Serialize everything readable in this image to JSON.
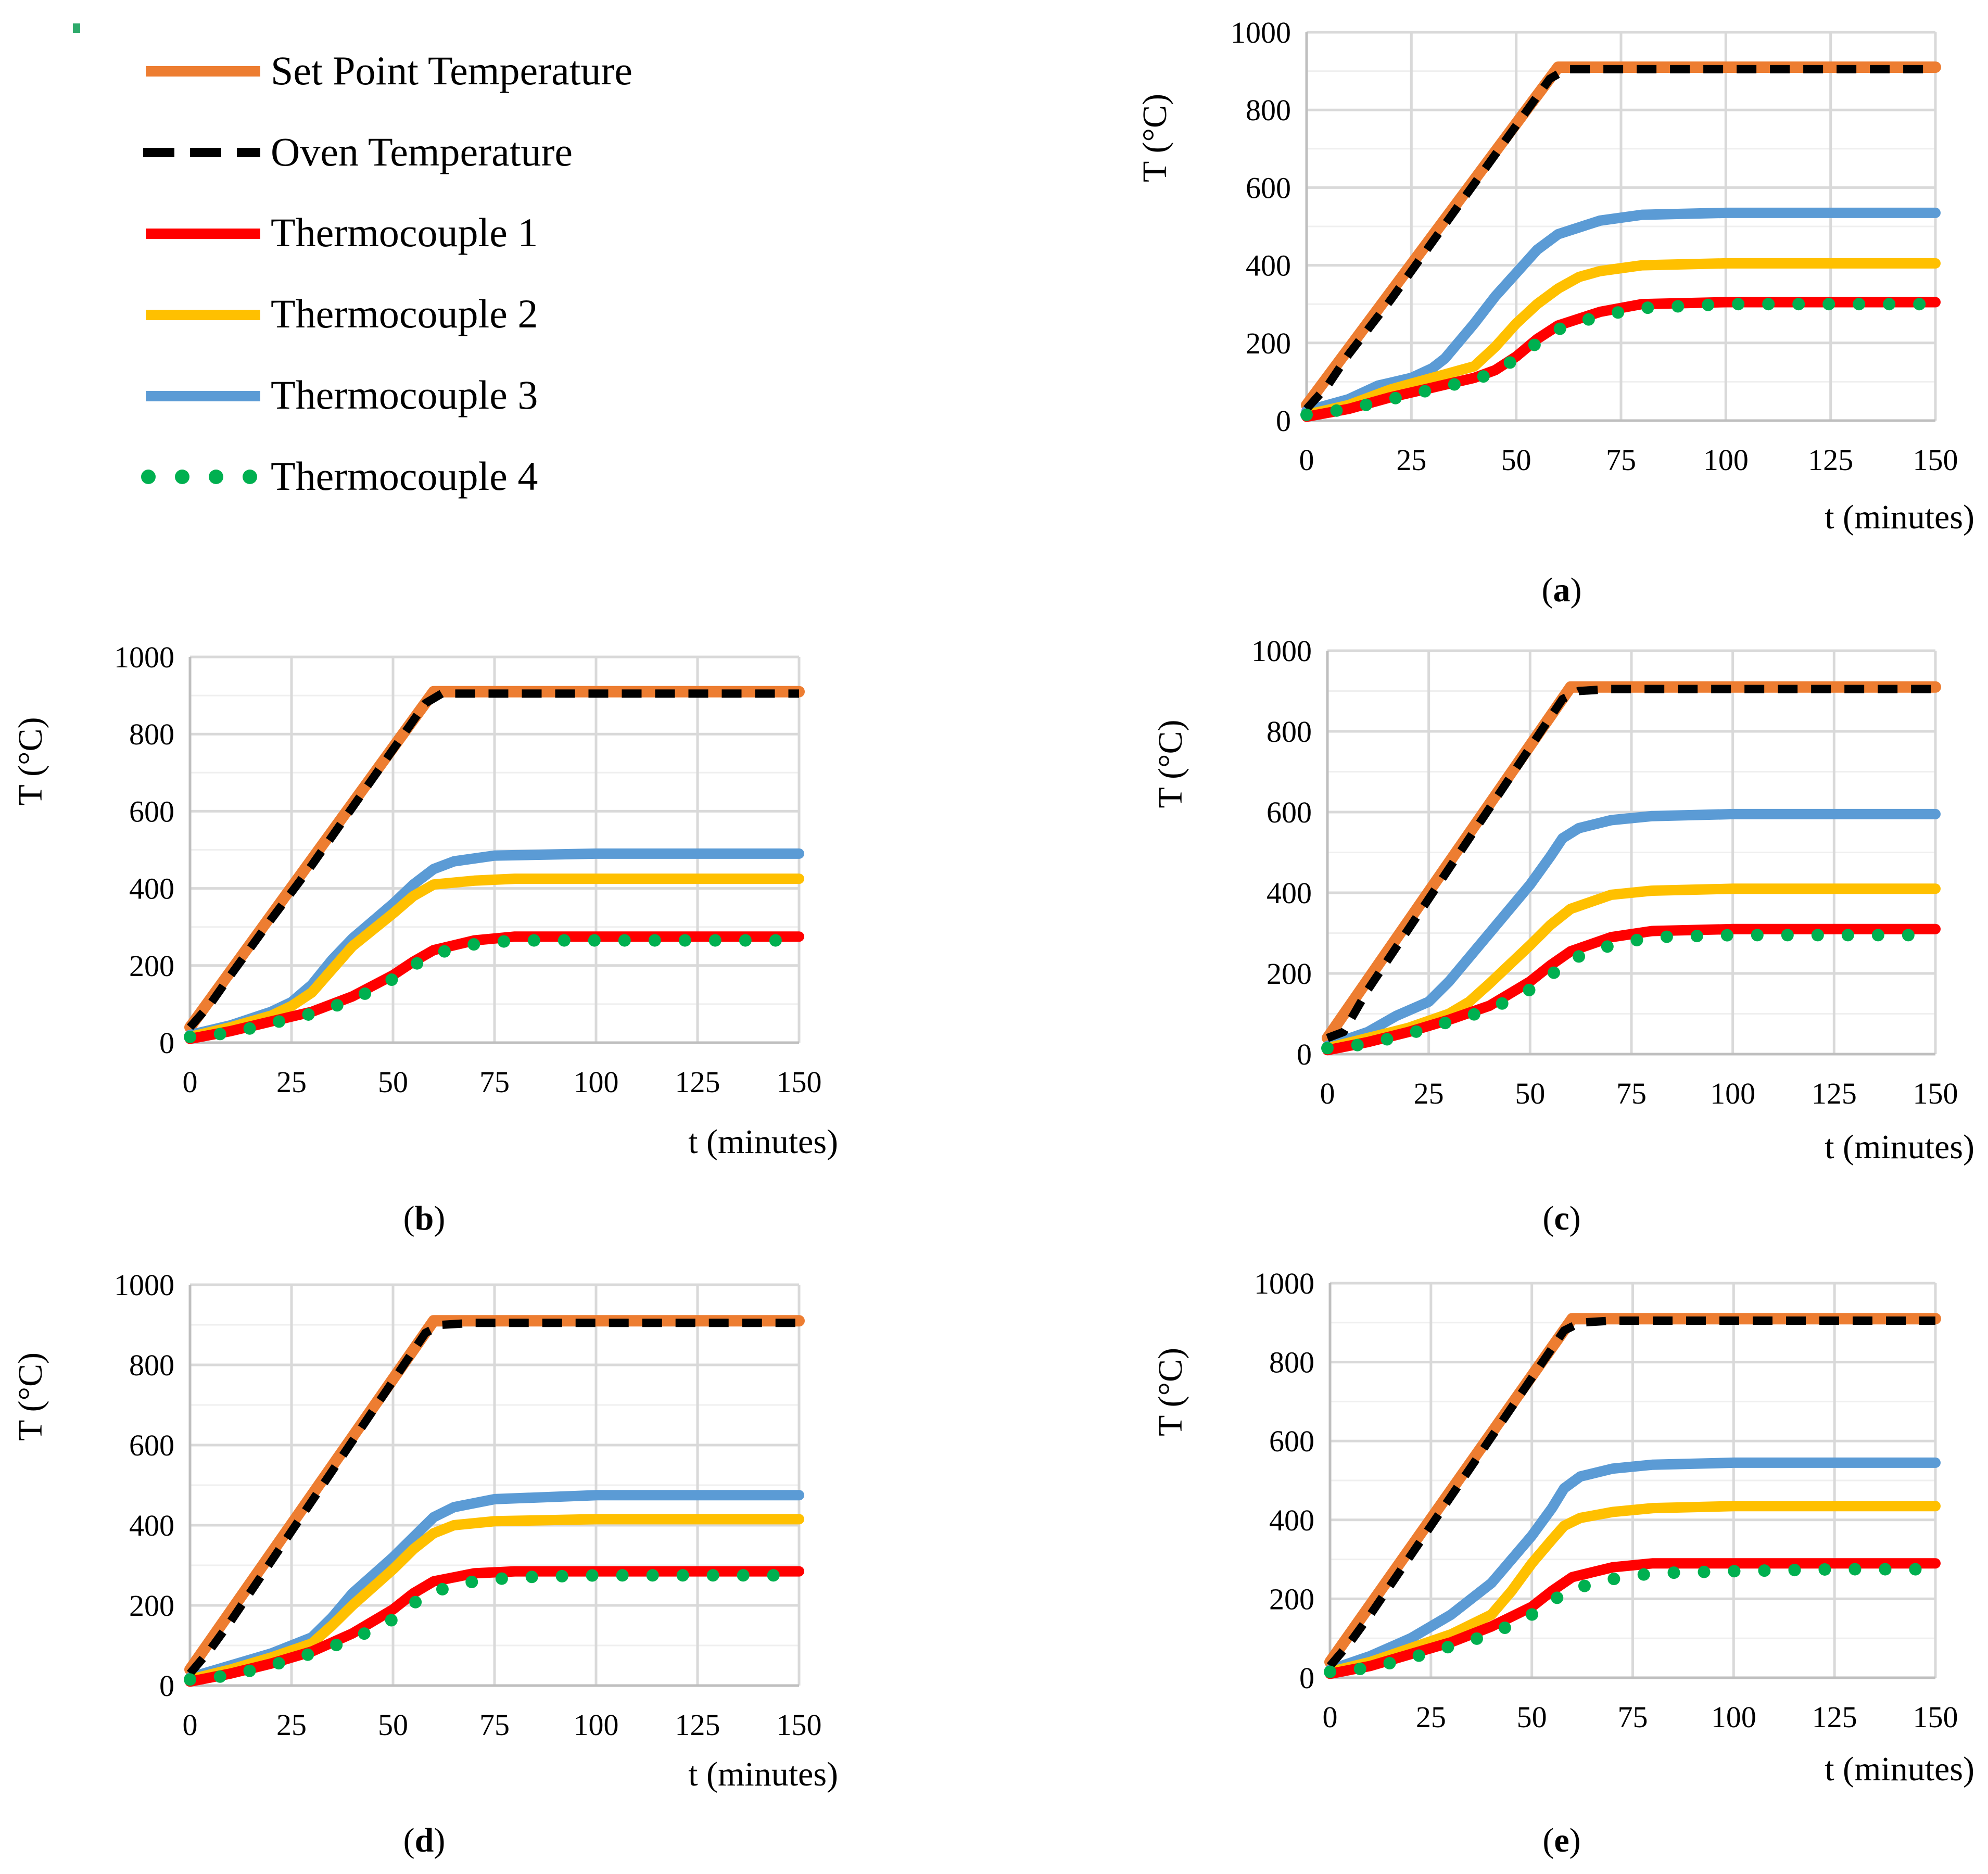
{
  "legend": {
    "items": [
      {
        "label": "Set Point Temperature",
        "color": "#ED7D31",
        "style": "solid"
      },
      {
        "label": "Oven Temperature",
        "color": "#000000",
        "style": "dashed"
      },
      {
        "label": "Thermocouple 1",
        "color": "#FF0000",
        "style": "solid"
      },
      {
        "label": "Thermocouple 2",
        "color": "#FFC000",
        "style": "solid"
      },
      {
        "label": "Thermocouple 3",
        "color": "#5B9BD5",
        "style": "solid"
      },
      {
        "label": "Thermocouple 4",
        "color": "#00B050",
        "style": "dotted"
      }
    ]
  },
  "chart_data": [
    {
      "type": "line",
      "panel": "a",
      "xlabel": "t (minutes)",
      "ylabel": "T (°C)",
      "xlim": [
        0,
        150
      ],
      "ylim": [
        0,
        1000
      ],
      "xticks": [
        0,
        25,
        50,
        75,
        100,
        125,
        150
      ],
      "yticks": [
        0,
        200,
        400,
        600,
        800,
        1000
      ],
      "grid": true,
      "series": [
        {
          "name": "Set Point Temperature",
          "x": [
            0,
            60,
            150
          ],
          "y": [
            40,
            910,
            910
          ]
        },
        {
          "name": "Oven Temperature",
          "x": [
            0,
            5,
            10,
            20,
            30,
            40,
            50,
            58,
            62,
            70,
            100,
            150
          ],
          "y": [
            30,
            90,
            170,
            310,
            460,
            610,
            760,
            880,
            905,
            905,
            905,
            905
          ]
        },
        {
          "name": "Thermocouple 1",
          "x": [
            0,
            10,
            20,
            30,
            40,
            45,
            50,
            55,
            60,
            70,
            80,
            100,
            125,
            150
          ],
          "y": [
            10,
            30,
            60,
            85,
            110,
            130,
            165,
            210,
            245,
            280,
            300,
            305,
            305,
            305
          ]
        },
        {
          "name": "Thermocouple 2",
          "x": [
            0,
            10,
            20,
            30,
            40,
            45,
            50,
            55,
            60,
            65,
            70,
            80,
            100,
            125,
            150
          ],
          "y": [
            15,
            40,
            80,
            110,
            140,
            190,
            250,
            300,
            340,
            370,
            385,
            400,
            405,
            405,
            405
          ]
        },
        {
          "name": "Thermocouple 3",
          "x": [
            0,
            10,
            17,
            25,
            30,
            33,
            40,
            45,
            50,
            55,
            60,
            70,
            80,
            100,
            125,
            150
          ],
          "y": [
            25,
            55,
            90,
            110,
            135,
            160,
            250,
            320,
            380,
            440,
            480,
            515,
            530,
            535,
            535,
            535
          ]
        },
        {
          "name": "Thermocouple 4",
          "x": [
            0,
            10,
            20,
            30,
            40,
            45,
            50,
            55,
            60,
            70,
            80,
            100,
            125,
            150
          ],
          "y": [
            15,
            30,
            55,
            80,
            105,
            125,
            160,
            200,
            235,
            270,
            290,
            300,
            300,
            300
          ]
        }
      ]
    },
    {
      "type": "line",
      "panel": "b",
      "xlabel": "t (minutes)",
      "ylabel": "T (°C)",
      "xlim": [
        0,
        150
      ],
      "ylim": [
        0,
        1000
      ],
      "xticks": [
        0,
        25,
        50,
        75,
        100,
        125,
        150
      ],
      "yticks": [
        0,
        200,
        400,
        600,
        800,
        1000
      ],
      "grid": true,
      "series": [
        {
          "name": "Set Point Temperature",
          "x": [
            0,
            60,
            150
          ],
          "y": [
            40,
            910,
            910
          ]
        },
        {
          "name": "Oven Temperature",
          "x": [
            0,
            5,
            10,
            20,
            30,
            40,
            50,
            58,
            62,
            70,
            100,
            150
          ],
          "y": [
            40,
            100,
            175,
            320,
            460,
            610,
            760,
            880,
            905,
            905,
            905,
            905
          ]
        },
        {
          "name": "Thermocouple 1",
          "x": [
            0,
            10,
            20,
            30,
            40,
            50,
            55,
            60,
            70,
            80,
            100,
            125,
            150
          ],
          "y": [
            10,
            30,
            55,
            80,
            120,
            175,
            210,
            240,
            265,
            275,
            275,
            275,
            275
          ]
        },
        {
          "name": "Thermocouple 2",
          "x": [
            0,
            10,
            20,
            25,
            30,
            35,
            40,
            50,
            55,
            60,
            70,
            80,
            100,
            125,
            150
          ],
          "y": [
            15,
            40,
            70,
            95,
            130,
            190,
            250,
            335,
            380,
            410,
            420,
            425,
            425,
            425,
            425
          ]
        },
        {
          "name": "Thermocouple 3",
          "x": [
            0,
            10,
            20,
            25,
            30,
            35,
            40,
            50,
            55,
            60,
            65,
            75,
            100,
            125,
            150
          ],
          "y": [
            20,
            45,
            80,
            105,
            150,
            215,
            270,
            360,
            410,
            450,
            470,
            485,
            490,
            490,
            490
          ]
        },
        {
          "name": "Thermocouple 4",
          "x": [
            0,
            10,
            20,
            30,
            40,
            50,
            55,
            60,
            70,
            80,
            100,
            125,
            150
          ],
          "y": [
            15,
            25,
            50,
            75,
            110,
            165,
            200,
            230,
            255,
            265,
            265,
            265,
            265
          ]
        }
      ]
    },
    {
      "type": "line",
      "panel": "c",
      "xlabel": "t (minutes)",
      "ylabel": "T (°C)",
      "xlim": [
        0,
        150
      ],
      "ylim": [
        0,
        1000
      ],
      "xticks": [
        0,
        25,
        50,
        75,
        100,
        125,
        150
      ],
      "yticks": [
        0,
        200,
        400,
        600,
        800,
        1000
      ],
      "grid": true,
      "series": [
        {
          "name": "Set Point Temperature",
          "x": [
            0,
            60,
            150
          ],
          "y": [
            40,
            910,
            910
          ]
        },
        {
          "name": "Oven Temperature",
          "x": [
            0,
            4,
            10,
            20,
            30,
            40,
            50,
            58,
            62,
            70,
            100,
            150
          ],
          "y": [
            40,
            55,
            160,
            310,
            460,
            610,
            760,
            880,
            900,
            905,
            905,
            905
          ]
        },
        {
          "name": "Thermocouple 1",
          "x": [
            0,
            10,
            20,
            30,
            40,
            50,
            55,
            60,
            70,
            80,
            100,
            125,
            150
          ],
          "y": [
            10,
            30,
            55,
            85,
            120,
            180,
            220,
            255,
            290,
            305,
            310,
            310,
            310
          ]
        },
        {
          "name": "Thermocouple 2",
          "x": [
            0,
            10,
            20,
            30,
            35,
            40,
            50,
            55,
            60,
            70,
            80,
            100,
            125,
            150
          ],
          "y": [
            15,
            40,
            65,
            100,
            130,
            175,
            270,
            320,
            360,
            395,
            405,
            410,
            410,
            410
          ]
        },
        {
          "name": "Thermocouple 3",
          "x": [
            0,
            10,
            17,
            25,
            30,
            40,
            50,
            55,
            58,
            62,
            70,
            80,
            100,
            125,
            150
          ],
          "y": [
            20,
            55,
            95,
            130,
            180,
            300,
            420,
            490,
            535,
            560,
            580,
            590,
            595,
            595,
            595
          ]
        },
        {
          "name": "Thermocouple 4",
          "x": [
            0,
            10,
            20,
            30,
            40,
            50,
            55,
            60,
            70,
            80,
            100,
            125,
            150
          ],
          "y": [
            15,
            25,
            50,
            80,
            110,
            160,
            195,
            235,
            270,
            290,
            295,
            295,
            295
          ]
        }
      ]
    },
    {
      "type": "line",
      "panel": "d",
      "xlabel": "t (minutes)",
      "ylabel": "T (°C)",
      "xlim": [
        0,
        150
      ],
      "ylim": [
        0,
        1000
      ],
      "xticks": [
        0,
        25,
        50,
        75,
        100,
        125,
        150
      ],
      "yticks": [
        0,
        200,
        400,
        600,
        800,
        1000
      ],
      "grid": true,
      "series": [
        {
          "name": "Set Point Temperature",
          "x": [
            0,
            60,
            150
          ],
          "y": [
            40,
            910,
            910
          ]
        },
        {
          "name": "Oven Temperature",
          "x": [
            0,
            5,
            10,
            20,
            30,
            40,
            50,
            58,
            62,
            70,
            100,
            150
          ],
          "y": [
            30,
            90,
            160,
            310,
            460,
            610,
            760,
            880,
            900,
            905,
            905,
            905
          ]
        },
        {
          "name": "Thermocouple 1",
          "x": [
            0,
            10,
            20,
            30,
            40,
            50,
            55,
            60,
            70,
            80,
            100,
            125,
            150
          ],
          "y": [
            10,
            30,
            55,
            85,
            130,
            190,
            230,
            260,
            280,
            285,
            285,
            285,
            285
          ]
        },
        {
          "name": "Thermocouple 2",
          "x": [
            0,
            10,
            20,
            30,
            35,
            40,
            50,
            55,
            60,
            65,
            75,
            100,
            125,
            150
          ],
          "y": [
            15,
            40,
            70,
            105,
            150,
            200,
            290,
            340,
            380,
            400,
            410,
            415,
            415,
            415
          ]
        },
        {
          "name": "Thermocouple 3",
          "x": [
            0,
            10,
            20,
            30,
            35,
            40,
            50,
            55,
            60,
            65,
            75,
            100,
            125,
            150
          ],
          "y": [
            20,
            50,
            80,
            120,
            170,
            230,
            320,
            370,
            420,
            445,
            465,
            475,
            475,
            475
          ]
        },
        {
          "name": "Thermocouple 4",
          "x": [
            0,
            10,
            20,
            30,
            40,
            50,
            55,
            60,
            70,
            80,
            100,
            125,
            150
          ],
          "y": [
            15,
            25,
            50,
            80,
            115,
            165,
            205,
            235,
            260,
            270,
            275,
            275,
            275
          ]
        }
      ]
    },
    {
      "type": "line",
      "panel": "e",
      "xlabel": "t (minutes)",
      "ylabel": "T (°C)",
      "xlim": [
        0,
        150
      ],
      "ylim": [
        0,
        1000
      ],
      "xticks": [
        0,
        25,
        50,
        75,
        100,
        125,
        150
      ],
      "yticks": [
        0,
        200,
        400,
        600,
        800,
        1000
      ],
      "grid": true,
      "series": [
        {
          "name": "Set Point Temperature",
          "x": [
            0,
            60,
            150
          ],
          "y": [
            40,
            910,
            910
          ]
        },
        {
          "name": "Oven Temperature",
          "x": [
            0,
            5,
            10,
            20,
            30,
            40,
            50,
            58,
            62,
            70,
            100,
            150
          ],
          "y": [
            30,
            90,
            160,
            310,
            460,
            610,
            760,
            880,
            900,
            905,
            905,
            905
          ]
        },
        {
          "name": "Thermocouple 1",
          "x": [
            0,
            10,
            20,
            30,
            40,
            50,
            55,
            60,
            70,
            80,
            100,
            125,
            150
          ],
          "y": [
            10,
            30,
            60,
            90,
            130,
            180,
            220,
            255,
            280,
            290,
            290,
            290,
            290
          ]
        },
        {
          "name": "Thermocouple 2",
          "x": [
            0,
            10,
            20,
            30,
            40,
            45,
            50,
            55,
            58,
            62,
            70,
            80,
            100,
            125,
            150
          ],
          "y": [
            15,
            40,
            75,
            110,
            160,
            220,
            290,
            350,
            385,
            405,
            420,
            430,
            435,
            435,
            435
          ]
        },
        {
          "name": "Thermocouple 3",
          "x": [
            0,
            10,
            20,
            30,
            40,
            45,
            50,
            55,
            58,
            62,
            70,
            80,
            100,
            125,
            150
          ],
          "y": [
            20,
            55,
            100,
            160,
            240,
            300,
            360,
            430,
            480,
            510,
            530,
            540,
            545,
            545,
            545
          ]
        },
        {
          "name": "Thermocouple 4",
          "x": [
            0,
            10,
            20,
            30,
            40,
            50,
            55,
            60,
            70,
            80,
            100,
            125,
            150
          ],
          "y": [
            15,
            25,
            50,
            80,
            110,
            160,
            195,
            225,
            250,
            265,
            270,
            275,
            275
          ]
        }
      ]
    }
  ]
}
